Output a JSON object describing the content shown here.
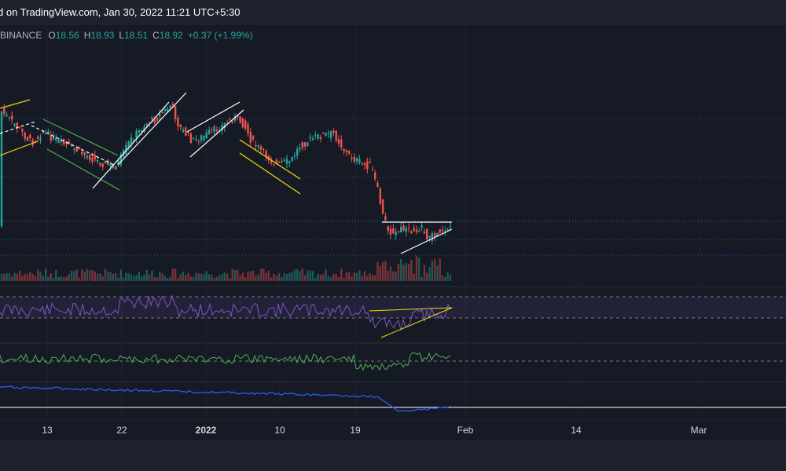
{
  "header": {
    "published_text": "d on TradingView.com, Jan 30, 2022 11:21 UTC+5:30"
  },
  "legend": {
    "symbol": "BINANCE",
    "open_label": "O",
    "open": "18.56",
    "high_label": "H",
    "high": "18.93",
    "low_label": "L",
    "low": "18.51",
    "close_label": "C",
    "close": "18.92",
    "change": "+0.37 (+1.99%)"
  },
  "x_axis": {
    "ticks": [
      {
        "label": "13",
        "bold": false
      },
      {
        "label": "22",
        "bold": false
      },
      {
        "label": "2022",
        "bold": true
      },
      {
        "label": "10",
        "bold": false
      },
      {
        "label": "19",
        "bold": false
      },
      {
        "label": "Feb",
        "bold": false
      },
      {
        "label": "14",
        "bold": false
      },
      {
        "label": "Mar",
        "bold": false
      }
    ]
  },
  "colors": {
    "up": "#26a69a",
    "down": "#ef5350",
    "rsi": "#7e57c2",
    "green_indicator": "#4caf50",
    "blue_indicator": "#2962ff",
    "trend_yellow": "#f5d90a",
    "trend_green": "#4caf50",
    "trend_white": "#ffffff"
  },
  "chart_data": {
    "type": "candlestick",
    "title": "",
    "panes": [
      "price",
      "volume",
      "rsi",
      "oscillator",
      "indicator"
    ],
    "drawings": [
      "yellow channel",
      "green channel",
      "white channel",
      "white channel",
      "yellow channel",
      "white horizontal line",
      "white ascending trendline",
      "yellow ascending triangle on RSI"
    ]
  }
}
